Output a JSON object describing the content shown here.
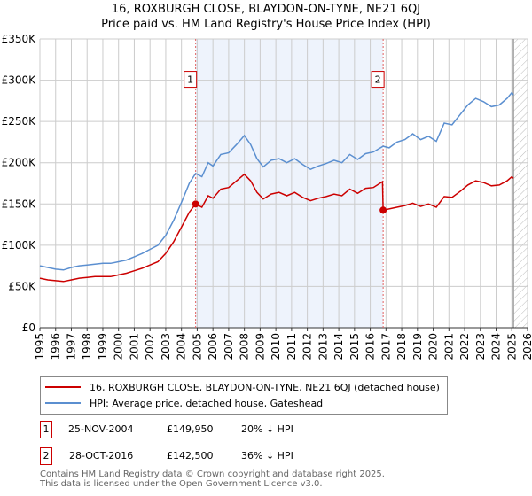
{
  "chart_data": {
    "type": "line",
    "title": "16, ROXBURGH CLOSE, BLAYDON-ON-TYNE, NE21 6QJ",
    "subtitle": "Price paid vs. HM Land Registry's House Price Index (HPI)",
    "xlim": [
      1995,
      2026
    ],
    "ylim": [
      0,
      350000
    ],
    "x_ticks": [
      "1995",
      "1996",
      "1997",
      "1998",
      "1999",
      "2000",
      "2001",
      "2002",
      "2003",
      "2004",
      "2005",
      "2006",
      "2007",
      "2008",
      "2009",
      "2010",
      "2011",
      "2012",
      "2013",
      "2014",
      "2015",
      "2016",
      "2017",
      "2018",
      "2019",
      "2020",
      "2021",
      "2022",
      "2023",
      "2024",
      "2025",
      "2026"
    ],
    "y_ticks": [
      {
        "value": 0,
        "label": "£0"
      },
      {
        "value": 50000,
        "label": "£50K"
      },
      {
        "value": 100000,
        "label": "£100K"
      },
      {
        "value": 150000,
        "label": "£150K"
      },
      {
        "value": 200000,
        "label": "£200K"
      },
      {
        "value": 250000,
        "label": "£250K"
      },
      {
        "value": 300000,
        "label": "£300K"
      },
      {
        "value": 350000,
        "label": "£350K"
      }
    ],
    "grid": true,
    "shaded_period": [
      2004.9,
      2016.82
    ],
    "forecast_hatch_from": 2025.1,
    "series": [
      {
        "name": "16, ROXBURGH CLOSE, BLAYDON-ON-TYNE, NE21 6QJ (detached house)",
        "color": "#cc0000",
        "unit_k": true,
        "points": [
          [
            1995,
            60
          ],
          [
            1995.5,
            58
          ],
          [
            1996,
            57
          ],
          [
            1996.5,
            56
          ],
          [
            1997,
            58
          ],
          [
            1997.5,
            60
          ],
          [
            1998,
            61
          ],
          [
            1998.5,
            62
          ],
          [
            1999,
            62
          ],
          [
            1999.5,
            62
          ],
          [
            2000,
            64
          ],
          [
            2000.5,
            66
          ],
          [
            2001,
            69
          ],
          [
            2001.5,
            72
          ],
          [
            2002,
            76
          ],
          [
            2002.5,
            80
          ],
          [
            2003,
            90
          ],
          [
            2003.5,
            104
          ],
          [
            2004,
            122
          ],
          [
            2004.5,
            140
          ],
          [
            2004.9,
            150
          ],
          [
            2005.3,
            146
          ],
          [
            2005.7,
            160
          ],
          [
            2006,
            157
          ],
          [
            2006.5,
            168
          ],
          [
            2007,
            170
          ],
          [
            2007.5,
            178
          ],
          [
            2008,
            186
          ],
          [
            2008.4,
            178
          ],
          [
            2008.8,
            164
          ],
          [
            2009.2,
            156
          ],
          [
            2009.7,
            162
          ],
          [
            2010.2,
            164
          ],
          [
            2010.7,
            160
          ],
          [
            2011.2,
            164
          ],
          [
            2011.7,
            158
          ],
          [
            2012.2,
            154
          ],
          [
            2012.7,
            157
          ],
          [
            2013.2,
            159
          ],
          [
            2013.7,
            162
          ],
          [
            2014.2,
            160
          ],
          [
            2014.7,
            168
          ],
          [
            2015.2,
            163
          ],
          [
            2015.7,
            169
          ],
          [
            2016.2,
            170
          ],
          [
            2016.78,
            177
          ],
          [
            2016.82,
            142.5
          ],
          [
            2017.2,
            144
          ],
          [
            2017.7,
            146
          ],
          [
            2018.2,
            148
          ],
          [
            2018.7,
            151
          ],
          [
            2019.2,
            147
          ],
          [
            2019.7,
            150
          ],
          [
            2020.2,
            146
          ],
          [
            2020.7,
            159
          ],
          [
            2021.2,
            158
          ],
          [
            2021.7,
            165
          ],
          [
            2022.2,
            173
          ],
          [
            2022.7,
            178
          ],
          [
            2023.2,
            176
          ],
          [
            2023.7,
            172
          ],
          [
            2024.2,
            173
          ],
          [
            2024.7,
            178
          ],
          [
            2025,
            183
          ],
          [
            2025.1,
            181
          ]
        ]
      },
      {
        "name": "HPI: Average price, detached house, Gateshead",
        "color": "#5b8fd0",
        "unit_k": true,
        "points": [
          [
            1995,
            75
          ],
          [
            1995.5,
            73
          ],
          [
            1996,
            71
          ],
          [
            1996.5,
            70
          ],
          [
            1997,
            73
          ],
          [
            1997.5,
            75
          ],
          [
            1998,
            76
          ],
          [
            1998.5,
            77
          ],
          [
            1999,
            78
          ],
          [
            1999.5,
            78
          ],
          [
            2000,
            80
          ],
          [
            2000.5,
            82
          ],
          [
            2001,
            86
          ],
          [
            2001.5,
            90
          ],
          [
            2002,
            95
          ],
          [
            2002.5,
            100
          ],
          [
            2003,
            112
          ],
          [
            2003.5,
            130
          ],
          [
            2004,
            152
          ],
          [
            2004.5,
            175
          ],
          [
            2004.9,
            187
          ],
          [
            2005.3,
            183
          ],
          [
            2005.7,
            200
          ],
          [
            2006,
            196
          ],
          [
            2006.5,
            210
          ],
          [
            2007,
            212
          ],
          [
            2007.5,
            222
          ],
          [
            2008,
            233
          ],
          [
            2008.4,
            222
          ],
          [
            2008.8,
            205
          ],
          [
            2009.2,
            195
          ],
          [
            2009.7,
            203
          ],
          [
            2010.2,
            205
          ],
          [
            2010.7,
            200
          ],
          [
            2011.2,
            205
          ],
          [
            2011.7,
            198
          ],
          [
            2012.2,
            192
          ],
          [
            2012.7,
            196
          ],
          [
            2013.2,
            199
          ],
          [
            2013.7,
            203
          ],
          [
            2014.2,
            200
          ],
          [
            2014.7,
            210
          ],
          [
            2015.2,
            204
          ],
          [
            2015.7,
            211
          ],
          [
            2016.2,
            213
          ],
          [
            2016.82,
            220
          ],
          [
            2017.2,
            218
          ],
          [
            2017.7,
            225
          ],
          [
            2018.2,
            228
          ],
          [
            2018.7,
            235
          ],
          [
            2019.2,
            228
          ],
          [
            2019.7,
            232
          ],
          [
            2020.2,
            226
          ],
          [
            2020.7,
            248
          ],
          [
            2021.2,
            246
          ],
          [
            2021.7,
            258
          ],
          [
            2022.2,
            270
          ],
          [
            2022.7,
            278
          ],
          [
            2023.2,
            274
          ],
          [
            2023.7,
            268
          ],
          [
            2024.2,
            270
          ],
          [
            2024.7,
            278
          ],
          [
            2025,
            285
          ],
          [
            2025.1,
            282
          ]
        ]
      }
    ],
    "sales": [
      {
        "label": "1",
        "x": 2004.9,
        "value": 149950,
        "date": "25-NOV-2004",
        "price": "£149,950",
        "hpi_diff": "20% ↓ HPI"
      },
      {
        "label": "2",
        "x": 2016.82,
        "value": 142500,
        "date": "28-OCT-2016",
        "price": "£142,500",
        "hpi_diff": "36% ↓ HPI"
      }
    ]
  },
  "legend": {
    "property": "16, ROXBURGH CLOSE, BLAYDON-ON-TYNE, NE21 6QJ (detached house)",
    "hpi": "HPI: Average price, detached house, Gateshead"
  },
  "footer": {
    "line1": "Contains HM Land Registry data © Crown copyright and database right 2025.",
    "line2": "This data is licensed under the Open Government Licence v3.0."
  }
}
